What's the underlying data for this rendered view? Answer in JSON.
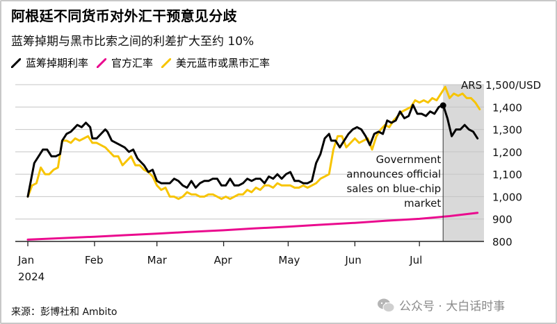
{
  "title": "阿根廷不同货币对外汇干预意见分歧",
  "subtitle": "蓝筹掉期与黑市比索之间的利差扩大至约 10%",
  "legend": [
    {
      "label": "蓝筹掉期利率",
      "color": "#000000"
    },
    {
      "label": "官方汇率",
      "color": "#ea0a8e"
    },
    {
      "label": "美元蓝市或黑市汇率",
      "color": "#f7c400"
    }
  ],
  "source": "来源：彭博社和 Ambito",
  "watermark": "公众号 · 大白话时事",
  "chart_data": {
    "type": "line",
    "xlabel": "",
    "ylabel": "",
    "y_unit_label": "ARS 1,500/USD",
    "ylim": [
      800,
      1500
    ],
    "y_ticks": [
      800,
      900,
      1000,
      1100,
      1200,
      1300,
      1400
    ],
    "y_tick_labels": [
      "800",
      "900",
      "1,000",
      "1,100",
      "1,200",
      "1,300",
      "1,400"
    ],
    "x_tick_labels": [
      "Jan",
      "Feb",
      "Mar",
      "Apr",
      "May",
      "Jun",
      "Jul"
    ],
    "x_tick_positions": [
      "2024-01-01",
      "2024-02-01",
      "2024-03-01",
      "2024-04-01",
      "2024-05-01",
      "2024-06-01",
      "2024-07-01"
    ],
    "x_year_label": "2024",
    "xlim": [
      "2024-01-01",
      "2024-07-31"
    ],
    "shaded_region": [
      "2024-07-12",
      "2024-07-31"
    ],
    "annotation": {
      "lines": [
        "Government",
        "announces official",
        "sales on blue-chip",
        "market"
      ],
      "x": "2024-07-12",
      "y": 1407
    },
    "grid": true,
    "series": [
      {
        "name": "蓝筹掉期利率",
        "color": "#000000",
        "x": [
          "2024-01-01",
          "2024-01-03",
          "2024-01-04",
          "2024-01-06",
          "2024-01-08",
          "2024-01-10",
          "2024-01-12",
          "2024-01-14",
          "2024-01-16",
          "2024-01-17",
          "2024-01-19",
          "2024-01-21",
          "2024-01-23",
          "2024-01-24",
          "2024-01-26",
          "2024-01-28",
          "2024-01-30",
          "2024-01-31",
          "2024-02-02",
          "2024-02-04",
          "2024-02-06",
          "2024-02-07",
          "2024-02-09",
          "2024-02-11",
          "2024-02-13",
          "2024-02-15",
          "2024-02-17",
          "2024-02-19",
          "2024-02-21",
          "2024-02-23",
          "2024-02-24",
          "2024-02-26",
          "2024-02-28",
          "2024-03-01",
          "2024-03-03",
          "2024-03-05",
          "2024-03-07",
          "2024-03-09",
          "2024-03-11",
          "2024-03-13",
          "2024-03-15",
          "2024-03-17",
          "2024-03-19",
          "2024-03-21",
          "2024-03-23",
          "2024-03-25",
          "2024-03-27",
          "2024-03-29",
          "2024-03-31",
          "2024-04-02",
          "2024-04-04",
          "2024-04-06",
          "2024-04-08",
          "2024-04-10",
          "2024-04-12",
          "2024-04-14",
          "2024-04-16",
          "2024-04-18",
          "2024-04-20",
          "2024-04-22",
          "2024-04-24",
          "2024-04-26",
          "2024-04-28",
          "2024-04-30",
          "2024-05-02",
          "2024-05-04",
          "2024-05-06",
          "2024-05-08",
          "2024-05-10",
          "2024-05-12",
          "2024-05-14",
          "2024-05-16",
          "2024-05-18",
          "2024-05-20",
          "2024-05-21",
          "2024-05-23",
          "2024-05-25",
          "2024-05-27",
          "2024-05-29",
          "2024-05-31",
          "2024-06-02",
          "2024-06-04",
          "2024-06-06",
          "2024-06-08",
          "2024-06-10",
          "2024-06-12",
          "2024-06-14",
          "2024-06-16",
          "2024-06-18",
          "2024-06-20",
          "2024-06-22",
          "2024-06-24",
          "2024-06-26",
          "2024-06-28",
          "2024-06-30",
          "2024-07-02",
          "2024-07-04",
          "2024-07-06",
          "2024-07-08",
          "2024-07-10",
          "2024-07-12",
          "2024-07-14",
          "2024-07-16",
          "2024-07-18",
          "2024-07-20",
          "2024-07-22",
          "2024-07-24",
          "2024-07-26",
          "2024-07-28"
        ],
        "values": [
          1000,
          1100,
          1150,
          1180,
          1210,
          1210,
          1180,
          1180,
          1190,
          1250,
          1280,
          1290,
          1310,
          1320,
          1310,
          1330,
          1310,
          1260,
          1260,
          1280,
          1300,
          1290,
          1250,
          1240,
          1230,
          1220,
          1200,
          1210,
          1170,
          1150,
          1140,
          1110,
          1120,
          1070,
          1060,
          1060,
          1060,
          1080,
          1070,
          1050,
          1040,
          1070,
          1040,
          1060,
          1070,
          1070,
          1080,
          1080,
          1050,
          1050,
          1080,
          1050,
          1050,
          1060,
          1080,
          1070,
          1080,
          1080,
          1060,
          1090,
          1080,
          1100,
          1080,
          1100,
          1110,
          1070,
          1070,
          1060,
          1060,
          1070,
          1150,
          1190,
          1260,
          1280,
          1250,
          1250,
          1220,
          1250,
          1280,
          1300,
          1310,
          1300,
          1270,
          1230,
          1280,
          1290,
          1280,
          1340,
          1330,
          1340,
          1380,
          1350,
          1360,
          1410,
          1370,
          1370,
          1360,
          1380,
          1370,
          1400,
          1410,
          1350,
          1270,
          1300,
          1300,
          1320,
          1300,
          1290,
          1260
        ]
      },
      {
        "name": "官方汇率",
        "color": "#ea0a8e",
        "x": [
          "2024-01-01",
          "2024-01-15",
          "2024-02-01",
          "2024-02-15",
          "2024-03-01",
          "2024-03-15",
          "2024-04-01",
          "2024-04-15",
          "2024-05-01",
          "2024-05-15",
          "2024-06-01",
          "2024-06-15",
          "2024-07-01",
          "2024-07-15",
          "2024-07-28"
        ],
        "values": [
          808,
          814,
          821,
          828,
          835,
          842,
          850,
          858,
          866,
          874,
          883,
          892,
          901,
          913,
          928
        ]
      },
      {
        "name": "美元蓝市或黑市汇率",
        "color": "#f7c400",
        "x": [
          "2024-01-01",
          "2024-01-03",
          "2024-01-05",
          "2024-01-07",
          "2024-01-09",
          "2024-01-11",
          "2024-01-13",
          "2024-01-15",
          "2024-01-17",
          "2024-01-19",
          "2024-01-21",
          "2024-01-23",
          "2024-01-25",
          "2024-01-27",
          "2024-01-29",
          "2024-01-31",
          "2024-02-02",
          "2024-02-04",
          "2024-02-06",
          "2024-02-08",
          "2024-02-10",
          "2024-02-12",
          "2024-02-14",
          "2024-02-16",
          "2024-02-18",
          "2024-02-20",
          "2024-02-22",
          "2024-02-24",
          "2024-02-26",
          "2024-02-28",
          "2024-03-01",
          "2024-03-03",
          "2024-03-05",
          "2024-03-07",
          "2024-03-09",
          "2024-03-11",
          "2024-03-13",
          "2024-03-15",
          "2024-03-17",
          "2024-03-19",
          "2024-03-21",
          "2024-03-23",
          "2024-03-25",
          "2024-03-27",
          "2024-03-29",
          "2024-03-31",
          "2024-04-02",
          "2024-04-04",
          "2024-04-06",
          "2024-04-08",
          "2024-04-10",
          "2024-04-12",
          "2024-04-14",
          "2024-04-16",
          "2024-04-18",
          "2024-04-20",
          "2024-04-22",
          "2024-04-24",
          "2024-04-26",
          "2024-04-28",
          "2024-04-30",
          "2024-05-02",
          "2024-05-04",
          "2024-05-06",
          "2024-05-08",
          "2024-05-10",
          "2024-05-12",
          "2024-05-14",
          "2024-05-16",
          "2024-05-18",
          "2024-05-20",
          "2024-05-22",
          "2024-05-24",
          "2024-05-26",
          "2024-05-28",
          "2024-05-30",
          "2024-06-01",
          "2024-06-03",
          "2024-06-05",
          "2024-06-07",
          "2024-06-09",
          "2024-06-11",
          "2024-06-13",
          "2024-06-15",
          "2024-06-17",
          "2024-06-19",
          "2024-06-21",
          "2024-06-23",
          "2024-06-25",
          "2024-06-27",
          "2024-06-29",
          "2024-07-01",
          "2024-07-03",
          "2024-07-05",
          "2024-07-07",
          "2024-07-09",
          "2024-07-11",
          "2024-07-13",
          "2024-07-15",
          "2024-07-17",
          "2024-07-19",
          "2024-07-21",
          "2024-07-23",
          "2024-07-25",
          "2024-07-27",
          "2024-07-29"
        ],
        "values": [
          1000,
          1050,
          1060,
          1130,
          1100,
          1100,
          1120,
          1130,
          1250,
          1250,
          1240,
          1260,
          1250,
          1260,
          1270,
          1240,
          1240,
          1230,
          1220,
          1200,
          1180,
          1180,
          1140,
          1160,
          1180,
          1140,
          1140,
          1120,
          1110,
          1090,
          1050,
          1030,
          1040,
          1000,
          1000,
          990,
          1000,
          1020,
          1010,
          1010,
          1000,
          1000,
          1010,
          1010,
          1000,
          990,
          1000,
          990,
          1000,
          1010,
          1010,
          1030,
          1020,
          1040,
          1030,
          1050,
          1050,
          1040,
          1060,
          1050,
          1050,
          1050,
          1040,
          1040,
          1050,
          1040,
          1050,
          1060,
          1080,
          1090,
          1100,
          1210,
          1270,
          1270,
          1220,
          1240,
          1260,
          1240,
          1250,
          1260,
          1210,
          1270,
          1300,
          1320,
          1310,
          1340,
          1360,
          1380,
          1390,
          1400,
          1430,
          1420,
          1430,
          1420,
          1440,
          1430,
          1460,
          1490,
          1440,
          1460,
          1450,
          1460,
          1440,
          1440,
          1420,
          1390
        ]
      }
    ]
  }
}
